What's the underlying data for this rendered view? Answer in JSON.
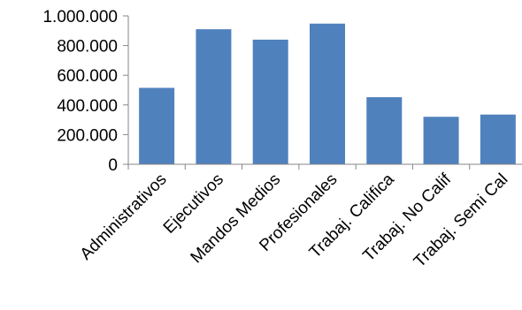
{
  "chart_data": {
    "type": "bar",
    "title": "",
    "xlabel": "",
    "ylabel": "",
    "categories": [
      "Administrativos",
      "Ejecutivos",
      "Mandos Medios",
      "Profesionales",
      "Trabaj. Califica",
      "Trabaj. No Calif",
      "Trabaj. Semi Cal"
    ],
    "values": [
      515000,
      910000,
      840000,
      948000,
      452000,
      320000,
      335000
    ],
    "ylim": [
      0,
      1000000
    ],
    "yticks": [
      {
        "value": 0,
        "label": "0"
      },
      {
        "value": 200000,
        "label": "200.000"
      },
      {
        "value": 400000,
        "label": "400.000"
      },
      {
        "value": 600000,
        "label": "600.000"
      },
      {
        "value": 800000,
        "label": "800.000"
      },
      {
        "value": 1000000,
        "label": "1.000.000"
      }
    ],
    "grid": false,
    "legend": "none",
    "bar_color": "#4F81BD"
  }
}
